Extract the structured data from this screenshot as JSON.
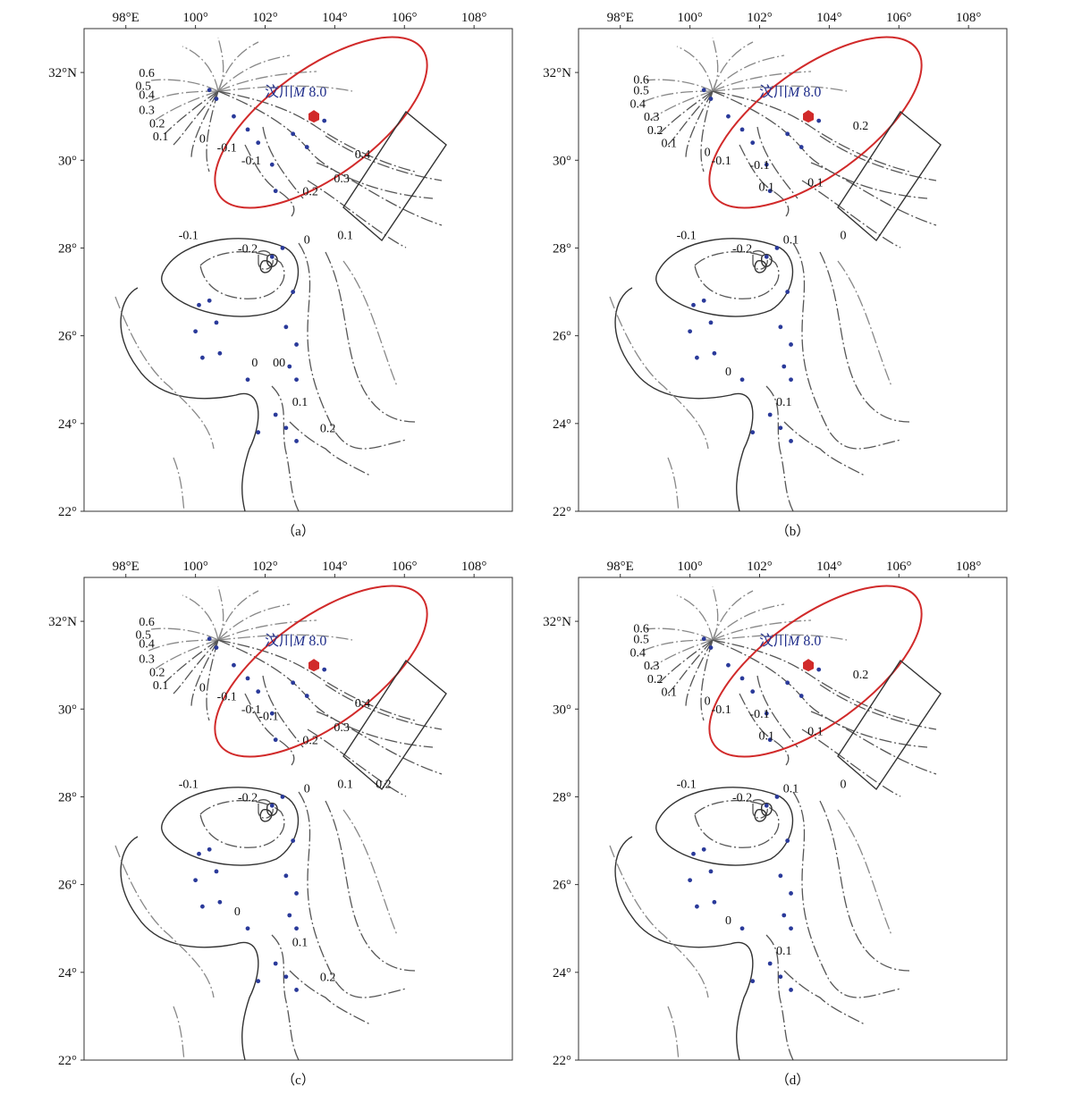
{
  "figure": {
    "x_tick_labels": [
      "98°E",
      "100°",
      "102°",
      "104°",
      "106°",
      "108°"
    ],
    "x_tick_values": [
      98,
      100,
      102,
      104,
      106,
      108
    ],
    "y_tick_labels": [
      "32°N",
      "30°",
      "28°",
      "26°",
      "24°",
      "22°"
    ],
    "y_tick_values": [
      32,
      30,
      28,
      26,
      24,
      22
    ],
    "lon_range": [
      96.8,
      109.1
    ],
    "lat_range": [
      22,
      33
    ],
    "earthquake_label": "汶川M 8.0",
    "earthquake_label_parts": [
      "汶川",
      "M",
      " 8.0"
    ],
    "epicenter": {
      "lon": 103.4,
      "lat": 31.0
    },
    "colors": {
      "ellipse": "#d12a2a",
      "epicenter": "#d12a2a",
      "stations": "#2a3a9a",
      "label": "#1f2d8a"
    }
  },
  "panels": [
    {
      "caption": "（a）",
      "contour_labels": [
        {
          "text": "0.6",
          "lon": 98.6,
          "lat": 31.9
        },
        {
          "text": "0.5",
          "lon": 98.5,
          "lat": 31.6
        },
        {
          "text": "0.4",
          "lon": 98.6,
          "lat": 31.4
        },
        {
          "text": "0.3",
          "lon": 98.6,
          "lat": 31.05
        },
        {
          "text": "0.2",
          "lon": 98.9,
          "lat": 30.75
        },
        {
          "text": "0.1",
          "lon": 99.0,
          "lat": 30.45
        },
        {
          "text": "0",
          "lon": 100.2,
          "lat": 30.4
        },
        {
          "text": "-0.1",
          "lon": 100.9,
          "lat": 30.2
        },
        {
          "text": "-0.1",
          "lon": 101.6,
          "lat": 29.9
        },
        {
          "text": "-0.1",
          "lon": 99.8,
          "lat": 28.2
        },
        {
          "text": "-0.2",
          "lon": 101.5,
          "lat": 27.9
        },
        {
          "text": "0.4",
          "lon": 104.8,
          "lat": 30.05
        },
        {
          "text": "0.3",
          "lon": 104.2,
          "lat": 29.5
        },
        {
          "text": "0.2",
          "lon": 103.3,
          "lat": 29.2
        },
        {
          "text": "0.1",
          "lon": 104.3,
          "lat": 28.2
        },
        {
          "text": "0",
          "lon": 103.2,
          "lat": 28.1
        },
        {
          "text": "0",
          "lon": 101.7,
          "lat": 25.3
        },
        {
          "text": "00",
          "lon": 102.4,
          "lat": 25.3
        },
        {
          "text": "0.1",
          "lon": 103.0,
          "lat": 24.4
        },
        {
          "text": "0.2",
          "lon": 103.8,
          "lat": 23.8
        }
      ]
    },
    {
      "caption": "（b）",
      "contour_labels": [
        {
          "text": "0.6",
          "lon": 98.6,
          "lat": 31.75
        },
        {
          "text": "0.5",
          "lon": 98.6,
          "lat": 31.5
        },
        {
          "text": "0.4",
          "lon": 98.5,
          "lat": 31.2
        },
        {
          "text": "0.3",
          "lon": 98.9,
          "lat": 30.9
        },
        {
          "text": "0.2",
          "lon": 99.0,
          "lat": 30.6
        },
        {
          "text": "0.1",
          "lon": 99.4,
          "lat": 30.3
        },
        {
          "text": "0",
          "lon": 100.5,
          "lat": 30.1
        },
        {
          "text": "-0.1",
          "lon": 100.9,
          "lat": 29.9
        },
        {
          "text": "-0.1",
          "lon": 102.0,
          "lat": 29.8
        },
        {
          "text": "0.1",
          "lon": 102.2,
          "lat": 29.3
        },
        {
          "text": "0.1",
          "lon": 103.6,
          "lat": 29.4
        },
        {
          "text": "0.2",
          "lon": 104.9,
          "lat": 30.7
        },
        {
          "text": "0",
          "lon": 104.4,
          "lat": 28.2
        },
        {
          "text": "-0.1",
          "lon": 99.9,
          "lat": 28.2
        },
        {
          "text": "-0.2",
          "lon": 101.5,
          "lat": 27.9
        },
        {
          "text": "0.1",
          "lon": 102.9,
          "lat": 28.1
        },
        {
          "text": "0",
          "lon": 101.1,
          "lat": 25.1
        },
        {
          "text": "0.1",
          "lon": 102.7,
          "lat": 24.4
        }
      ]
    },
    {
      "caption": "（c）",
      "contour_labels": [
        {
          "text": "0.6",
          "lon": 98.6,
          "lat": 31.9
        },
        {
          "text": "0.5",
          "lon": 98.5,
          "lat": 31.6
        },
        {
          "text": "0.4",
          "lon": 98.6,
          "lat": 31.4
        },
        {
          "text": "0.3",
          "lon": 98.6,
          "lat": 31.05
        },
        {
          "text": "0.2",
          "lon": 98.9,
          "lat": 30.75
        },
        {
          "text": "0.1",
          "lon": 99.0,
          "lat": 30.45
        },
        {
          "text": "0",
          "lon": 100.2,
          "lat": 30.4
        },
        {
          "text": "-0.1",
          "lon": 100.9,
          "lat": 30.2
        },
        {
          "text": "-0.1",
          "lon": 101.6,
          "lat": 29.9
        },
        {
          "text": "-0.1",
          "lon": 102.1,
          "lat": 29.75
        },
        {
          "text": "-0.1",
          "lon": 99.8,
          "lat": 28.2
        },
        {
          "text": "-0.2",
          "lon": 101.5,
          "lat": 27.9
        },
        {
          "text": "0.4",
          "lon": 104.8,
          "lat": 30.05
        },
        {
          "text": "0.3",
          "lon": 104.2,
          "lat": 29.5
        },
        {
          "text": "0.2",
          "lon": 103.3,
          "lat": 29.2
        },
        {
          "text": "0.2",
          "lon": 105.4,
          "lat": 28.2
        },
        {
          "text": "0.1",
          "lon": 104.3,
          "lat": 28.2
        },
        {
          "text": "0",
          "lon": 103.2,
          "lat": 28.1
        },
        {
          "text": "0",
          "lon": 101.2,
          "lat": 25.3
        },
        {
          "text": "0.1",
          "lon": 103.0,
          "lat": 24.6
        },
        {
          "text": "0.2",
          "lon": 103.8,
          "lat": 23.8
        }
      ]
    },
    {
      "caption": "（d）",
      "contour_labels": [
        {
          "text": "0.6",
          "lon": 98.6,
          "lat": 31.75
        },
        {
          "text": "0.5",
          "lon": 98.6,
          "lat": 31.5
        },
        {
          "text": "0.4",
          "lon": 98.5,
          "lat": 31.2
        },
        {
          "text": "0.3",
          "lon": 98.9,
          "lat": 30.9
        },
        {
          "text": "0.2",
          "lon": 99.0,
          "lat": 30.6
        },
        {
          "text": "0.1",
          "lon": 99.4,
          "lat": 30.3
        },
        {
          "text": "0",
          "lon": 100.5,
          "lat": 30.1
        },
        {
          "text": "-0.1",
          "lon": 100.9,
          "lat": 29.9
        },
        {
          "text": "-0.1",
          "lon": 102.0,
          "lat": 29.8
        },
        {
          "text": "0.1",
          "lon": 102.2,
          "lat": 29.3
        },
        {
          "text": "0.1",
          "lon": 103.6,
          "lat": 29.4
        },
        {
          "text": "0.2",
          "lon": 104.9,
          "lat": 30.7
        },
        {
          "text": "0",
          "lon": 104.4,
          "lat": 28.2
        },
        {
          "text": "-0.1",
          "lon": 99.9,
          "lat": 28.2
        },
        {
          "text": "-0.2",
          "lon": 101.5,
          "lat": 27.9
        },
        {
          "text": "0.1",
          "lon": 102.9,
          "lat": 28.1
        },
        {
          "text": "0",
          "lon": 101.1,
          "lat": 25.1
        },
        {
          "text": "0.1",
          "lon": 102.7,
          "lat": 24.4
        }
      ]
    }
  ],
  "stations": [
    {
      "lon": 100.4,
      "lat": 31.6
    },
    {
      "lon": 100.6,
      "lat": 31.4
    },
    {
      "lon": 101.1,
      "lat": 31.0
    },
    {
      "lon": 101.5,
      "lat": 30.7
    },
    {
      "lon": 101.8,
      "lat": 30.4
    },
    {
      "lon": 102.2,
      "lat": 29.9
    },
    {
      "lon": 102.3,
      "lat": 29.3
    },
    {
      "lon": 102.8,
      "lat": 30.6
    },
    {
      "lon": 103.2,
      "lat": 30.3
    },
    {
      "lon": 103.7,
      "lat": 30.9
    },
    {
      "lon": 102.5,
      "lat": 28.0
    },
    {
      "lon": 102.2,
      "lat": 27.8
    },
    {
      "lon": 102.8,
      "lat": 27.0
    },
    {
      "lon": 102.6,
      "lat": 26.2
    },
    {
      "lon": 102.9,
      "lat": 25.8
    },
    {
      "lon": 102.7,
      "lat": 25.3
    },
    {
      "lon": 102.9,
      "lat": 25.0
    },
    {
      "lon": 102.3,
      "lat": 24.2
    },
    {
      "lon": 102.6,
      "lat": 23.9
    },
    {
      "lon": 102.9,
      "lat": 23.6
    },
    {
      "lon": 101.8,
      "lat": 23.8
    },
    {
      "lon": 100.1,
      "lat": 26.7
    },
    {
      "lon": 100.4,
      "lat": 26.8
    },
    {
      "lon": 100.0,
      "lat": 26.1
    },
    {
      "lon": 100.2,
      "lat": 25.5
    },
    {
      "lon": 100.7,
      "lat": 25.6
    },
    {
      "lon": 100.6,
      "lat": 26.3
    },
    {
      "lon": 101.5,
      "lat": 25.0
    }
  ]
}
